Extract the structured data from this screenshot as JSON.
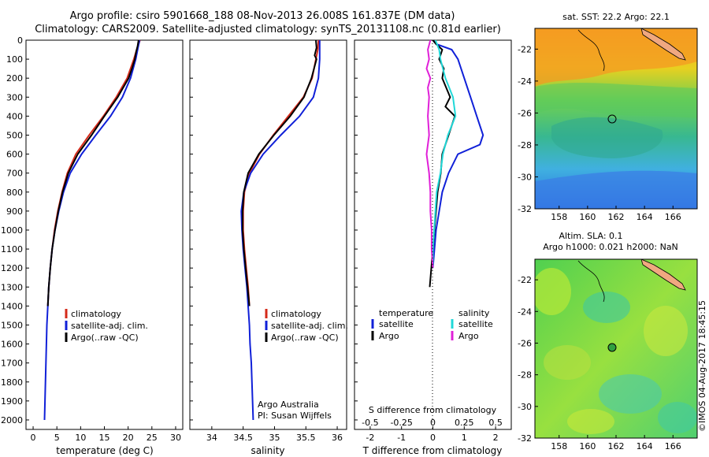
{
  "header": {
    "line1": "Argo profile: csiro 5901668_188 08-Nov-2013 26.008S 161.837E (DM data)",
    "line2": "Climatology: CARS2009. Satellite-adjusted climatology: synTS_20131108.nc (0.81d earlier)"
  },
  "side_stamp": "©IMOS 04-Aug-2017 18:45:15",
  "colors": {
    "climatology": "#d42a1a",
    "satellite": "#1020d8",
    "argo": "#000000",
    "s_satellite": "#20d8d8",
    "s_argo": "#e020d8"
  },
  "chart_data": [
    {
      "type": "line",
      "name": "temperature-panel",
      "xlabel": "temperature (deg C)",
      "ylabel": "",
      "xlim": [
        -1.5,
        31.5
      ],
      "ylim": [
        2050,
        0
      ],
      "xticks": [
        "0",
        "5",
        "10",
        "15",
        "20",
        "25",
        "30"
      ],
      "yticks": [
        "0",
        "100",
        "200",
        "300",
        "400",
        "500",
        "600",
        "700",
        "800",
        "900",
        "1000",
        "1100",
        "1200",
        "1300",
        "1400",
        "1500",
        "1600",
        "1700",
        "1800",
        "1900",
        "2000"
      ],
      "legend": [
        "climatology",
        "satellite-adj. clim.",
        "Argo(..raw -QC)"
      ],
      "series": [
        {
          "name": "climatology",
          "depth": [
            0,
            50,
            100,
            200,
            300,
            400,
            500,
            600,
            700,
            800,
            900,
            1000,
            1100,
            1200,
            1300,
            1400
          ],
          "values": [
            22.5,
            21.8,
            21.2,
            19.8,
            17.5,
            14.8,
            11.8,
            9.0,
            7.2,
            6.1,
            5.2,
            4.5,
            4.0,
            3.6,
            3.3,
            3.1
          ]
        },
        {
          "name": "satellite-adj. clim.",
          "depth": [
            0,
            50,
            100,
            200,
            300,
            400,
            500,
            600,
            700,
            800,
            900,
            1000,
            1100,
            1200,
            1300,
            1400,
            1500,
            1600,
            1700,
            1800,
            1900,
            2000
          ],
          "values": [
            22.4,
            22.0,
            21.6,
            20.5,
            18.8,
            16.3,
            13.2,
            10.2,
            7.8,
            6.4,
            5.4,
            4.6,
            4.0,
            3.6,
            3.3,
            3.1,
            2.9,
            2.8,
            2.7,
            2.6,
            2.5,
            2.4
          ]
        },
        {
          "name": "Argo(..raw -QC)",
          "depth": [
            0,
            30,
            60,
            100,
            150,
            200,
            300,
            400,
            500,
            600,
            700,
            800,
            900,
            1000,
            1100,
            1200,
            1300,
            1400
          ],
          "values": [
            22.2,
            22.0,
            21.7,
            21.4,
            20.8,
            20.1,
            17.8,
            15.0,
            12.3,
            9.4,
            7.4,
            6.2,
            5.3,
            4.6,
            4.0,
            3.6,
            3.3,
            3.1
          ]
        }
      ]
    },
    {
      "type": "line",
      "name": "salinity-panel",
      "xlabel": "salinity",
      "ylabel": "",
      "xlim": [
        33.65,
        36.15
      ],
      "ylim": [
        2050,
        0
      ],
      "xticks": [
        "34",
        "34.5",
        "35",
        "35.5",
        "36"
      ],
      "legend": [
        "climatology",
        "satellite-adj. clim.",
        "Argo(..raw -QC)"
      ],
      "annotation": [
        "Argo Australia",
        "PI: Susan Wijffels"
      ],
      "series": [
        {
          "name": "climatology",
          "depth": [
            0,
            50,
            100,
            200,
            300,
            400,
            500,
            600,
            700,
            800,
            900,
            1000,
            1100,
            1200,
            1300,
            1400
          ],
          "values": [
            35.7,
            35.69,
            35.66,
            35.6,
            35.46,
            35.22,
            34.98,
            34.76,
            34.6,
            34.52,
            34.5,
            34.5,
            34.52,
            34.55,
            34.58,
            34.6
          ]
        },
        {
          "name": "satellite-adj. clim.",
          "depth": [
            0,
            50,
            100,
            200,
            300,
            400,
            500,
            600,
            700,
            800,
            900,
            1000,
            1100,
            1200,
            1300,
            1400,
            1500,
            1600,
            1700,
            1800,
            1900,
            2000
          ],
          "values": [
            35.72,
            35.72,
            35.72,
            35.7,
            35.62,
            35.4,
            35.1,
            34.82,
            34.62,
            34.51,
            34.47,
            34.48,
            34.5,
            34.53,
            34.56,
            34.58,
            34.6,
            34.61,
            34.63,
            34.64,
            34.65,
            34.66
          ]
        },
        {
          "name": "Argo(..raw -QC)",
          "depth": [
            0,
            40,
            80,
            100,
            150,
            200,
            300,
            400,
            500,
            600,
            700,
            800,
            900,
            1000,
            1100,
            1200,
            1300,
            1400
          ],
          "values": [
            35.66,
            35.67,
            35.64,
            35.67,
            35.63,
            35.59,
            35.47,
            35.25,
            34.99,
            34.75,
            34.58,
            34.51,
            34.49,
            34.49,
            34.51,
            34.54,
            34.57,
            34.6
          ]
        }
      ]
    },
    {
      "type": "line",
      "name": "difference-panel",
      "xlabel": "T difference from climatology",
      "xlabel2": "S difference from climatology",
      "xlim": [
        -2.5,
        2.5
      ],
      "ylim": [
        2050,
        0
      ],
      "xticks": [
        "-2",
        "-1",
        "0",
        "1",
        "2"
      ],
      "xticks2": [
        "-0.5",
        "-0.25",
        "0",
        "0.25",
        "0.5"
      ],
      "legend_temperature": [
        "temperature",
        "satellite",
        "Argo"
      ],
      "legend_salinity": [
        "salinity",
        "satellite",
        "Argo"
      ],
      "series": [
        {
          "name": "T satellite",
          "depth": [
            0,
            20,
            50,
            100,
            200,
            300,
            400,
            500,
            550,
            600,
            700,
            800,
            900,
            1000,
            1100,
            1200
          ],
          "values": [
            0.0,
            0.1,
            0.6,
            0.8,
            1.0,
            1.2,
            1.4,
            1.6,
            1.5,
            0.8,
            0.5,
            0.3,
            0.2,
            0.1,
            0.05,
            0.0
          ]
        },
        {
          "name": "T Argo",
          "depth": [
            0,
            20,
            50,
            100,
            150,
            200,
            300,
            350,
            400,
            500,
            600,
            700,
            800,
            900,
            1000,
            1100,
            1200,
            1300
          ],
          "values": [
            0.0,
            0.1,
            0.3,
            0.2,
            0.35,
            0.3,
            0.55,
            0.4,
            0.7,
            0.5,
            0.3,
            0.25,
            0.15,
            0.1,
            0.05,
            0.0,
            -0.05,
            -0.1
          ]
        },
        {
          "name": "S satellite",
          "depth": [
            0,
            50,
            100,
            200,
            300,
            400,
            500,
            600,
            700,
            800,
            900,
            1000,
            1100,
            1200
          ],
          "values": [
            0.02,
            0.05,
            0.06,
            0.1,
            0.16,
            0.18,
            0.12,
            0.08,
            0.06,
            0.03,
            0.02,
            0.01,
            0.0,
            0.0
          ]
        },
        {
          "name": "S Argo",
          "depth": [
            0,
            50,
            100,
            150,
            200,
            250,
            300,
            400,
            500,
            600,
            700,
            800,
            900,
            1000,
            1100,
            1200
          ],
          "values": [
            -0.02,
            -0.04,
            -0.03,
            -0.05,
            -0.02,
            -0.04,
            -0.03,
            -0.04,
            -0.03,
            -0.05,
            -0.03,
            -0.02,
            -0.02,
            -0.01,
            -0.01,
            0.0
          ]
        }
      ]
    }
  ],
  "maps": {
    "sst": {
      "title": "sat. SST: 22.2  Argo: 22.1",
      "xticks": [
        "158",
        "160",
        "162",
        "164",
        "166"
      ],
      "yticks": [
        "-22",
        "-24",
        "-26",
        "-28",
        "-30",
        "-32"
      ],
      "argo_lon": 161.837,
      "argo_lat": -26.008
    },
    "sla": {
      "title1": "Altim. SLA: 0.1",
      "title2": "Argo h1000: 0.021 h2000: NaN",
      "xticks": [
        "158",
        "160",
        "162",
        "164",
        "166"
      ],
      "yticks": [
        "-22",
        "-24",
        "-26",
        "-28",
        "-30",
        "-32"
      ],
      "argo_lon": 161.837,
      "argo_lat": -26.008
    }
  }
}
